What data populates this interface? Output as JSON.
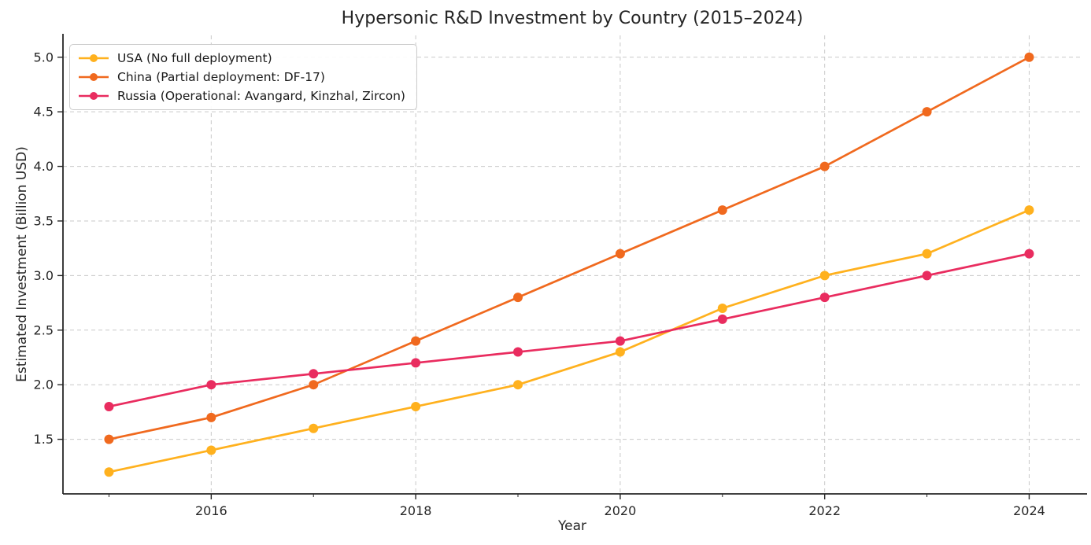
{
  "chart_data": {
    "type": "line",
    "title": "Hypersonic R&D Investment by Country (2015–2024)",
    "xlabel": "Year",
    "ylabel": "Estimated Investment (Billion USD)",
    "x": [
      2015,
      2016,
      2017,
      2018,
      2019,
      2020,
      2021,
      2022,
      2023,
      2024
    ],
    "series": [
      {
        "name": "USA (No full deployment)",
        "color": "#FFB11E",
        "values": [
          1.2,
          1.4,
          1.6,
          1.8,
          2.0,
          2.3,
          2.7,
          3.0,
          3.2,
          3.6
        ]
      },
      {
        "name": "China (Partial deployment: DF-17)",
        "color": "#F0691E",
        "values": [
          1.5,
          1.7,
          2.0,
          2.4,
          2.8,
          3.2,
          3.6,
          4.0,
          4.5,
          5.0
        ]
      },
      {
        "name": "Russia (Operational: Avangard, Kinzhal, Zircon)",
        "color": "#E92C5F",
        "values": [
          1.8,
          2.0,
          2.1,
          2.2,
          2.3,
          2.4,
          2.6,
          2.8,
          3.0,
          3.2
        ]
      }
    ],
    "xlim": [
      2014.55,
      2024.52
    ],
    "ylim": [
      1.0,
      5.2
    ],
    "x_major_ticks": [
      2016,
      2018,
      2020,
      2022,
      2024
    ],
    "x_minor_ticks": [
      2015,
      2017,
      2019,
      2021,
      2023
    ],
    "y_ticks": [
      1.5,
      2.0,
      2.5,
      3.0,
      3.5,
      4.0,
      4.5,
      5.0
    ],
    "grid": true,
    "grid_style": "dashed",
    "grid_color": "#c9c9c9",
    "spine_color": "#262626",
    "legend_position": "upper left"
  }
}
